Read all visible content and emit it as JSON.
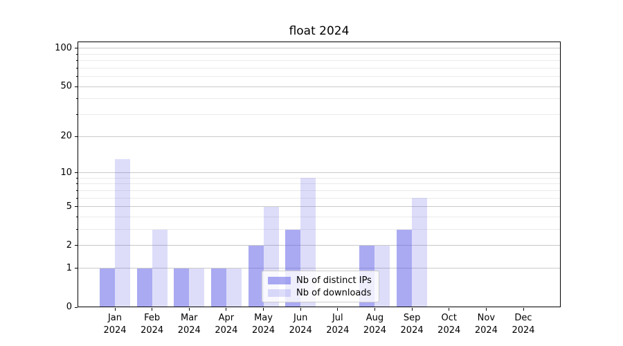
{
  "title": "float 2024",
  "chart_data": {
    "type": "bar",
    "title": "float 2024",
    "x_tick_labels": [
      {
        "month": "Jan",
        "year": "2024"
      },
      {
        "month": "Feb",
        "year": "2024"
      },
      {
        "month": "Mar",
        "year": "2024"
      },
      {
        "month": "Apr",
        "year": "2024"
      },
      {
        "month": "May",
        "year": "2024"
      },
      {
        "month": "Jun",
        "year": "2024"
      },
      {
        "month": "Jul",
        "year": "2024"
      },
      {
        "month": "Aug",
        "year": "2024"
      },
      {
        "month": "Sep",
        "year": "2024"
      },
      {
        "month": "Oct",
        "year": "2024"
      },
      {
        "month": "Nov",
        "year": "2024"
      },
      {
        "month": "Dec",
        "year": "2024"
      }
    ],
    "series": [
      {
        "name": "Nb of distinct IPs",
        "color": "rgba(85,85,230,0.5)",
        "values": [
          1,
          1,
          1,
          1,
          2,
          3,
          0,
          2,
          3,
          0,
          0,
          0
        ]
      },
      {
        "name": "Nb of downloads",
        "color": "rgba(85,85,230,0.2)",
        "values": [
          13,
          3,
          1,
          1,
          5,
          9,
          0,
          2,
          6,
          0,
          0,
          0
        ]
      }
    ],
    "y_axis": {
      "scale": "log1p",
      "major_ticks": [
        0,
        1,
        2,
        5,
        10,
        20,
        50,
        100
      ],
      "minor_ticks": [
        3,
        4,
        6,
        7,
        8,
        9,
        30,
        40,
        60,
        70,
        80,
        90
      ],
      "range_top_value": 113
    },
    "grid": "on",
    "legend_position": "inside-bottom-center",
    "colors": {
      "major_grid": "#c9c9c9",
      "minor_grid": "#eaeaea",
      "spine": "#000000",
      "text": "#000000"
    }
  }
}
